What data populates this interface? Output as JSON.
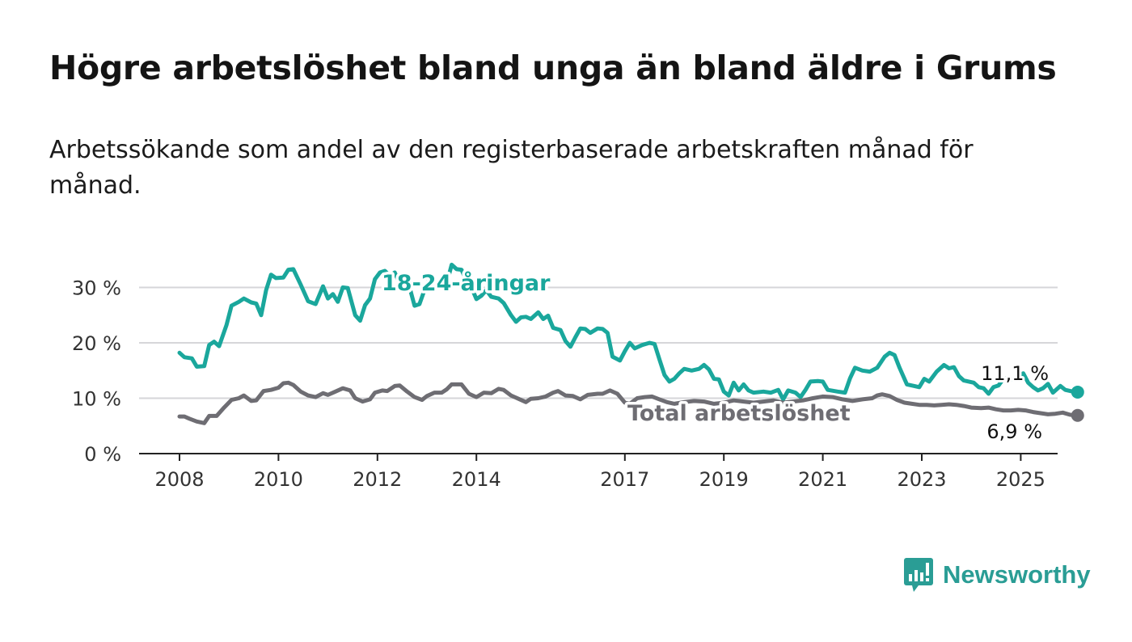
{
  "title": "Högre arbetslöshet bland unga än bland äldre i Grums",
  "subtitle": "Arbetssökande som andel av den registerbaserade arbetskraften månad för månad.",
  "logo_text": "Newsworthy",
  "colors": {
    "youth": "#1aa79c",
    "total": "#6e6d73",
    "grid": "#d6d6d9",
    "axis": "#222222",
    "logo": "#2a9d95"
  },
  "chart_data": {
    "type": "line",
    "x_unit": "year",
    "xlim": [
      2007.75,
      2025.55
    ],
    "ylim": [
      0,
      35
    ],
    "y_ticks": [
      0,
      10,
      20,
      30
    ],
    "y_tick_labels": [
      "0 %",
      "10 %",
      "20 %",
      "30 %"
    ],
    "x_ticks": [
      2008,
      2010,
      2012,
      2014,
      2017,
      2019,
      2021,
      2023,
      2025
    ],
    "x_tick_labels": [
      "2008",
      "2010",
      "2012",
      "2014",
      "2017",
      "2019",
      "2021",
      "2023",
      "2025"
    ],
    "grid": true,
    "series": [
      {
        "name": "18-24-åringar",
        "color": "#1aa79c",
        "end_label": "11,1 %",
        "points": [
          [
            2008.0,
            18.2
          ],
          [
            2008.1,
            17.4
          ],
          [
            2008.25,
            17.2
          ],
          [
            2008.35,
            15.7
          ],
          [
            2008.5,
            15.8
          ],
          [
            2008.6,
            19.6
          ],
          [
            2008.7,
            20.2
          ],
          [
            2008.8,
            19.4
          ],
          [
            2008.95,
            23.2
          ],
          [
            2009.05,
            26.7
          ],
          [
            2009.2,
            27.4
          ],
          [
            2009.3,
            28.0
          ],
          [
            2009.45,
            27.3
          ],
          [
            2009.55,
            27.1
          ],
          [
            2009.65,
            25.0
          ],
          [
            2009.75,
            29.5
          ],
          [
            2009.85,
            32.3
          ],
          [
            2009.95,
            31.7
          ],
          [
            2010.1,
            31.8
          ],
          [
            2010.2,
            33.2
          ],
          [
            2010.3,
            33.3
          ],
          [
            2010.45,
            30.5
          ],
          [
            2010.6,
            27.5
          ],
          [
            2010.75,
            27.0
          ],
          [
            2010.9,
            30.2
          ],
          [
            2011.0,
            28.0
          ],
          [
            2011.1,
            28.8
          ],
          [
            2011.2,
            27.4
          ],
          [
            2011.3,
            30.0
          ],
          [
            2011.4,
            29.9
          ],
          [
            2011.55,
            25.0
          ],
          [
            2011.65,
            24.0
          ],
          [
            2011.75,
            26.8
          ],
          [
            2011.85,
            28.0
          ],
          [
            2011.95,
            31.5
          ],
          [
            2012.05,
            32.7
          ],
          [
            2012.15,
            33.0
          ],
          [
            2012.25,
            32.1
          ],
          [
            2012.35,
            32.7
          ],
          [
            2012.5,
            29.7
          ],
          [
            2012.65,
            30.0
          ],
          [
            2012.75,
            26.7
          ],
          [
            2012.85,
            27.0
          ],
          [
            2012.95,
            29.5
          ],
          [
            2013.05,
            31.7
          ],
          [
            2013.2,
            30.0
          ],
          [
            2013.3,
            31.4
          ],
          [
            2013.45,
            32.4
          ],
          [
            2013.5,
            34.1
          ],
          [
            2013.6,
            33.3
          ],
          [
            2013.7,
            33.2
          ],
          [
            2013.8,
            31.2
          ],
          [
            2013.9,
            30.0
          ],
          [
            2014.0,
            27.9
          ],
          [
            2014.1,
            28.5
          ],
          [
            2014.2,
            29.5
          ],
          [
            2014.3,
            28.3
          ],
          [
            2014.45,
            28.0
          ],
          [
            2014.55,
            27.2
          ],
          [
            2014.7,
            25.0
          ],
          [
            2014.8,
            23.8
          ],
          [
            2014.9,
            24.6
          ],
          [
            2015.0,
            24.7
          ],
          [
            2015.1,
            24.3
          ],
          [
            2015.25,
            25.5
          ],
          [
            2015.35,
            24.3
          ],
          [
            2015.45,
            24.9
          ],
          [
            2015.55,
            22.7
          ],
          [
            2015.7,
            22.3
          ],
          [
            2015.8,
            20.3
          ],
          [
            2015.9,
            19.3
          ],
          [
            2016.0,
            21.0
          ],
          [
            2016.1,
            22.6
          ],
          [
            2016.2,
            22.5
          ],
          [
            2016.3,
            21.8
          ],
          [
            2016.45,
            22.6
          ],
          [
            2016.55,
            22.5
          ],
          [
            2016.65,
            21.8
          ],
          [
            2016.75,
            17.5
          ],
          [
            2016.9,
            16.8
          ],
          [
            2017.0,
            18.5
          ],
          [
            2017.1,
            20.0
          ],
          [
            2017.2,
            19.0
          ],
          [
            2017.35,
            19.6
          ],
          [
            2017.5,
            20.0
          ],
          [
            2017.6,
            19.8
          ],
          [
            2017.7,
            17.0
          ],
          [
            2017.8,
            14.2
          ],
          [
            2017.9,
            13.0
          ],
          [
            2018.0,
            13.5
          ],
          [
            2018.1,
            14.5
          ],
          [
            2018.2,
            15.3
          ],
          [
            2018.35,
            15.0
          ],
          [
            2018.5,
            15.3
          ],
          [
            2018.6,
            16.0
          ],
          [
            2018.7,
            15.2
          ],
          [
            2018.8,
            13.5
          ],
          [
            2018.9,
            13.4
          ],
          [
            2019.0,
            11.2
          ],
          [
            2019.1,
            10.5
          ],
          [
            2019.2,
            12.8
          ],
          [
            2019.3,
            11.4
          ],
          [
            2019.4,
            12.5
          ],
          [
            2019.5,
            11.4
          ],
          [
            2019.6,
            11.0
          ],
          [
            2019.8,
            11.2
          ],
          [
            2019.95,
            11.0
          ],
          [
            2020.1,
            11.5
          ],
          [
            2020.2,
            9.8
          ],
          [
            2020.3,
            11.4
          ],
          [
            2020.45,
            11.0
          ],
          [
            2020.55,
            10.2
          ],
          [
            2020.65,
            11.5
          ],
          [
            2020.75,
            13.0
          ],
          [
            2020.9,
            13.1
          ],
          [
            2021.0,
            13.0
          ],
          [
            2021.1,
            11.5
          ],
          [
            2021.3,
            11.2
          ],
          [
            2021.45,
            11.0
          ],
          [
            2021.55,
            13.6
          ],
          [
            2021.65,
            15.5
          ],
          [
            2021.8,
            15.0
          ],
          [
            2021.95,
            14.8
          ],
          [
            2022.1,
            15.5
          ],
          [
            2022.25,
            17.5
          ],
          [
            2022.35,
            18.2
          ],
          [
            2022.45,
            17.8
          ],
          [
            2022.55,
            15.5
          ],
          [
            2022.7,
            12.5
          ],
          [
            2022.85,
            12.2
          ],
          [
            2022.95,
            12.0
          ],
          [
            2023.05,
            13.5
          ],
          [
            2023.15,
            13.0
          ],
          [
            2023.3,
            14.8
          ],
          [
            2023.45,
            16.0
          ],
          [
            2023.55,
            15.4
          ],
          [
            2023.65,
            15.6
          ],
          [
            2023.75,
            14.0
          ],
          [
            2023.85,
            13.2
          ],
          [
            2023.95,
            13.0
          ],
          [
            2024.05,
            12.8
          ],
          [
            2024.15,
            12.0
          ],
          [
            2024.25,
            11.8
          ],
          [
            2024.35,
            10.8
          ],
          [
            2024.45,
            12.0
          ],
          [
            2024.55,
            12.3
          ],
          [
            2024.65,
            13.5
          ],
          [
            2024.75,
            13.6
          ],
          [
            2024.85,
            13.4
          ],
          [
            2024.95,
            14.0
          ],
          [
            2025.05,
            14.5
          ],
          [
            2025.15,
            12.8
          ],
          [
            2025.25,
            12.0
          ],
          [
            2025.35,
            11.4
          ],
          [
            2025.45,
            11.8
          ],
          [
            2025.55,
            12.6
          ],
          [
            2025.65,
            11.0
          ],
          [
            2025.8,
            12.2
          ],
          [
            2025.9,
            11.5
          ],
          [
            2026.0,
            11.3
          ],
          [
            2026.15,
            11.1
          ]
        ]
      },
      {
        "name": "Total arbetslöshet",
        "color": "#6e6d73",
        "end_label": "6,9 %",
        "points": [
          [
            2008.0,
            6.7
          ],
          [
            2008.1,
            6.7
          ],
          [
            2008.2,
            6.3
          ],
          [
            2008.35,
            5.8
          ],
          [
            2008.5,
            5.5
          ],
          [
            2008.6,
            6.8
          ],
          [
            2008.75,
            6.8
          ],
          [
            2008.9,
            8.3
          ],
          [
            2009.05,
            9.7
          ],
          [
            2009.2,
            10.0
          ],
          [
            2009.3,
            10.5
          ],
          [
            2009.45,
            9.5
          ],
          [
            2009.55,
            9.6
          ],
          [
            2009.7,
            11.3
          ],
          [
            2009.85,
            11.5
          ],
          [
            2010.0,
            11.9
          ],
          [
            2010.1,
            12.7
          ],
          [
            2010.2,
            12.8
          ],
          [
            2010.3,
            12.4
          ],
          [
            2010.45,
            11.2
          ],
          [
            2010.6,
            10.5
          ],
          [
            2010.75,
            10.2
          ],
          [
            2010.9,
            10.9
          ],
          [
            2011.0,
            10.6
          ],
          [
            2011.15,
            11.2
          ],
          [
            2011.3,
            11.8
          ],
          [
            2011.45,
            11.4
          ],
          [
            2011.55,
            10.0
          ],
          [
            2011.7,
            9.4
          ],
          [
            2011.85,
            9.8
          ],
          [
            2011.95,
            11.0
          ],
          [
            2012.1,
            11.4
          ],
          [
            2012.2,
            11.3
          ],
          [
            2012.35,
            12.2
          ],
          [
            2012.45,
            12.3
          ],
          [
            2012.6,
            11.2
          ],
          [
            2012.75,
            10.2
          ],
          [
            2012.9,
            9.7
          ],
          [
            2013.0,
            10.4
          ],
          [
            2013.15,
            11.0
          ],
          [
            2013.3,
            11.0
          ],
          [
            2013.4,
            11.6
          ],
          [
            2013.5,
            12.5
          ],
          [
            2013.7,
            12.5
          ],
          [
            2013.85,
            10.8
          ],
          [
            2014.0,
            10.2
          ],
          [
            2014.15,
            11.0
          ],
          [
            2014.3,
            10.9
          ],
          [
            2014.45,
            11.7
          ],
          [
            2014.55,
            11.5
          ],
          [
            2014.7,
            10.5
          ],
          [
            2014.85,
            9.9
          ],
          [
            2015.0,
            9.3
          ],
          [
            2015.1,
            9.9
          ],
          [
            2015.25,
            10.0
          ],
          [
            2015.4,
            10.3
          ],
          [
            2015.55,
            11.0
          ],
          [
            2015.65,
            11.3
          ],
          [
            2015.8,
            10.5
          ],
          [
            2015.95,
            10.4
          ],
          [
            2016.1,
            9.8
          ],
          [
            2016.25,
            10.6
          ],
          [
            2016.45,
            10.8
          ],
          [
            2016.55,
            10.8
          ],
          [
            2016.7,
            11.4
          ],
          [
            2016.85,
            10.8
          ],
          [
            2017.0,
            9.2
          ],
          [
            2017.1,
            9.0
          ],
          [
            2017.25,
            10.0
          ],
          [
            2017.4,
            10.2
          ],
          [
            2017.55,
            10.3
          ],
          [
            2017.7,
            9.8
          ],
          [
            2017.85,
            9.3
          ],
          [
            2018.0,
            9.0
          ],
          [
            2018.2,
            9.3
          ],
          [
            2018.4,
            9.5
          ],
          [
            2018.6,
            9.4
          ],
          [
            2018.8,
            9.0
          ],
          [
            2019.0,
            9.2
          ],
          [
            2019.2,
            9.6
          ],
          [
            2019.4,
            9.4
          ],
          [
            2019.6,
            9.2
          ],
          [
            2019.8,
            9.4
          ],
          [
            2020.0,
            9.6
          ],
          [
            2020.2,
            9.2
          ],
          [
            2020.4,
            9.4
          ],
          [
            2020.6,
            9.6
          ],
          [
            2020.8,
            10.0
          ],
          [
            2021.0,
            10.3
          ],
          [
            2021.2,
            10.2
          ],
          [
            2021.4,
            9.8
          ],
          [
            2021.6,
            9.5
          ],
          [
            2021.8,
            9.8
          ],
          [
            2022.0,
            10.0
          ],
          [
            2022.1,
            10.5
          ],
          [
            2022.2,
            10.7
          ],
          [
            2022.35,
            10.4
          ],
          [
            2022.5,
            9.7
          ],
          [
            2022.65,
            9.2
          ],
          [
            2022.8,
            9.0
          ],
          [
            2022.95,
            8.8
          ],
          [
            2023.1,
            8.8
          ],
          [
            2023.25,
            8.7
          ],
          [
            2023.4,
            8.8
          ],
          [
            2023.55,
            8.9
          ],
          [
            2023.7,
            8.8
          ],
          [
            2023.85,
            8.6
          ],
          [
            2024.0,
            8.3
          ],
          [
            2024.2,
            8.2
          ],
          [
            2024.35,
            8.3
          ],
          [
            2024.5,
            8.0
          ],
          [
            2024.65,
            7.8
          ],
          [
            2024.8,
            7.8
          ],
          [
            2024.95,
            7.9
          ],
          [
            2025.1,
            7.8
          ],
          [
            2025.25,
            7.5
          ],
          [
            2025.4,
            7.3
          ],
          [
            2025.55,
            7.1
          ],
          [
            2025.7,
            7.2
          ],
          [
            2025.85,
            7.4
          ],
          [
            2026.0,
            7.0
          ],
          [
            2026.15,
            6.9
          ]
        ]
      }
    ]
  }
}
